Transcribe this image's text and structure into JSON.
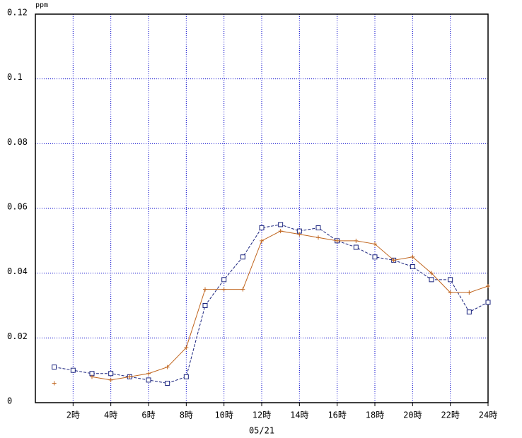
{
  "chart_data": {
    "type": "line",
    "y_unit": "ppm",
    "x_label": "05/21",
    "x": [
      1,
      2,
      3,
      4,
      5,
      6,
      7,
      8,
      9,
      10,
      11,
      12,
      13,
      14,
      15,
      16,
      17,
      18,
      19,
      20,
      21,
      22,
      23,
      24
    ],
    "xlim": [
      0,
      24
    ],
    "xticks": [
      {
        "value": 2,
        "label": "2時"
      },
      {
        "value": 4,
        "label": "4時"
      },
      {
        "value": 6,
        "label": "6時"
      },
      {
        "value": 8,
        "label": "8時"
      },
      {
        "value": 10,
        "label": "10時"
      },
      {
        "value": 12,
        "label": "12時"
      },
      {
        "value": 14,
        "label": "14時"
      },
      {
        "value": 16,
        "label": "16時"
      },
      {
        "value": 18,
        "label": "18時"
      },
      {
        "value": 20,
        "label": "20時"
      },
      {
        "value": 22,
        "label": "22時"
      },
      {
        "value": 24,
        "label": "24時"
      }
    ],
    "ylim": [
      0,
      0.12
    ],
    "yticks": [
      0,
      0.02,
      0.04,
      0.06,
      0.08,
      0.1,
      0.12
    ],
    "grid": true,
    "series": [
      {
        "color": "#1a237e",
        "marker": "square",
        "dashed": true,
        "values": [
          0.011,
          0.01,
          0.009,
          0.009,
          0.008,
          0.007,
          0.006,
          0.008,
          0.03,
          0.038,
          0.045,
          0.054,
          0.055,
          0.053,
          0.054,
          0.05,
          0.048,
          0.045,
          0.044,
          0.042,
          0.038,
          0.038,
          0.028,
          0.031
        ]
      },
      {
        "color": "#c0651e",
        "marker": "plus",
        "dashed": false,
        "values": [
          0.006,
          null,
          0.008,
          0.007,
          0.008,
          0.009,
          0.011,
          0.017,
          0.035,
          0.035,
          0.035,
          0.05,
          0.053,
          0.052,
          0.051,
          0.05,
          0.05,
          0.049,
          0.044,
          0.045,
          0.04,
          0.034,
          0.034,
          0.036
        ]
      }
    ]
  }
}
